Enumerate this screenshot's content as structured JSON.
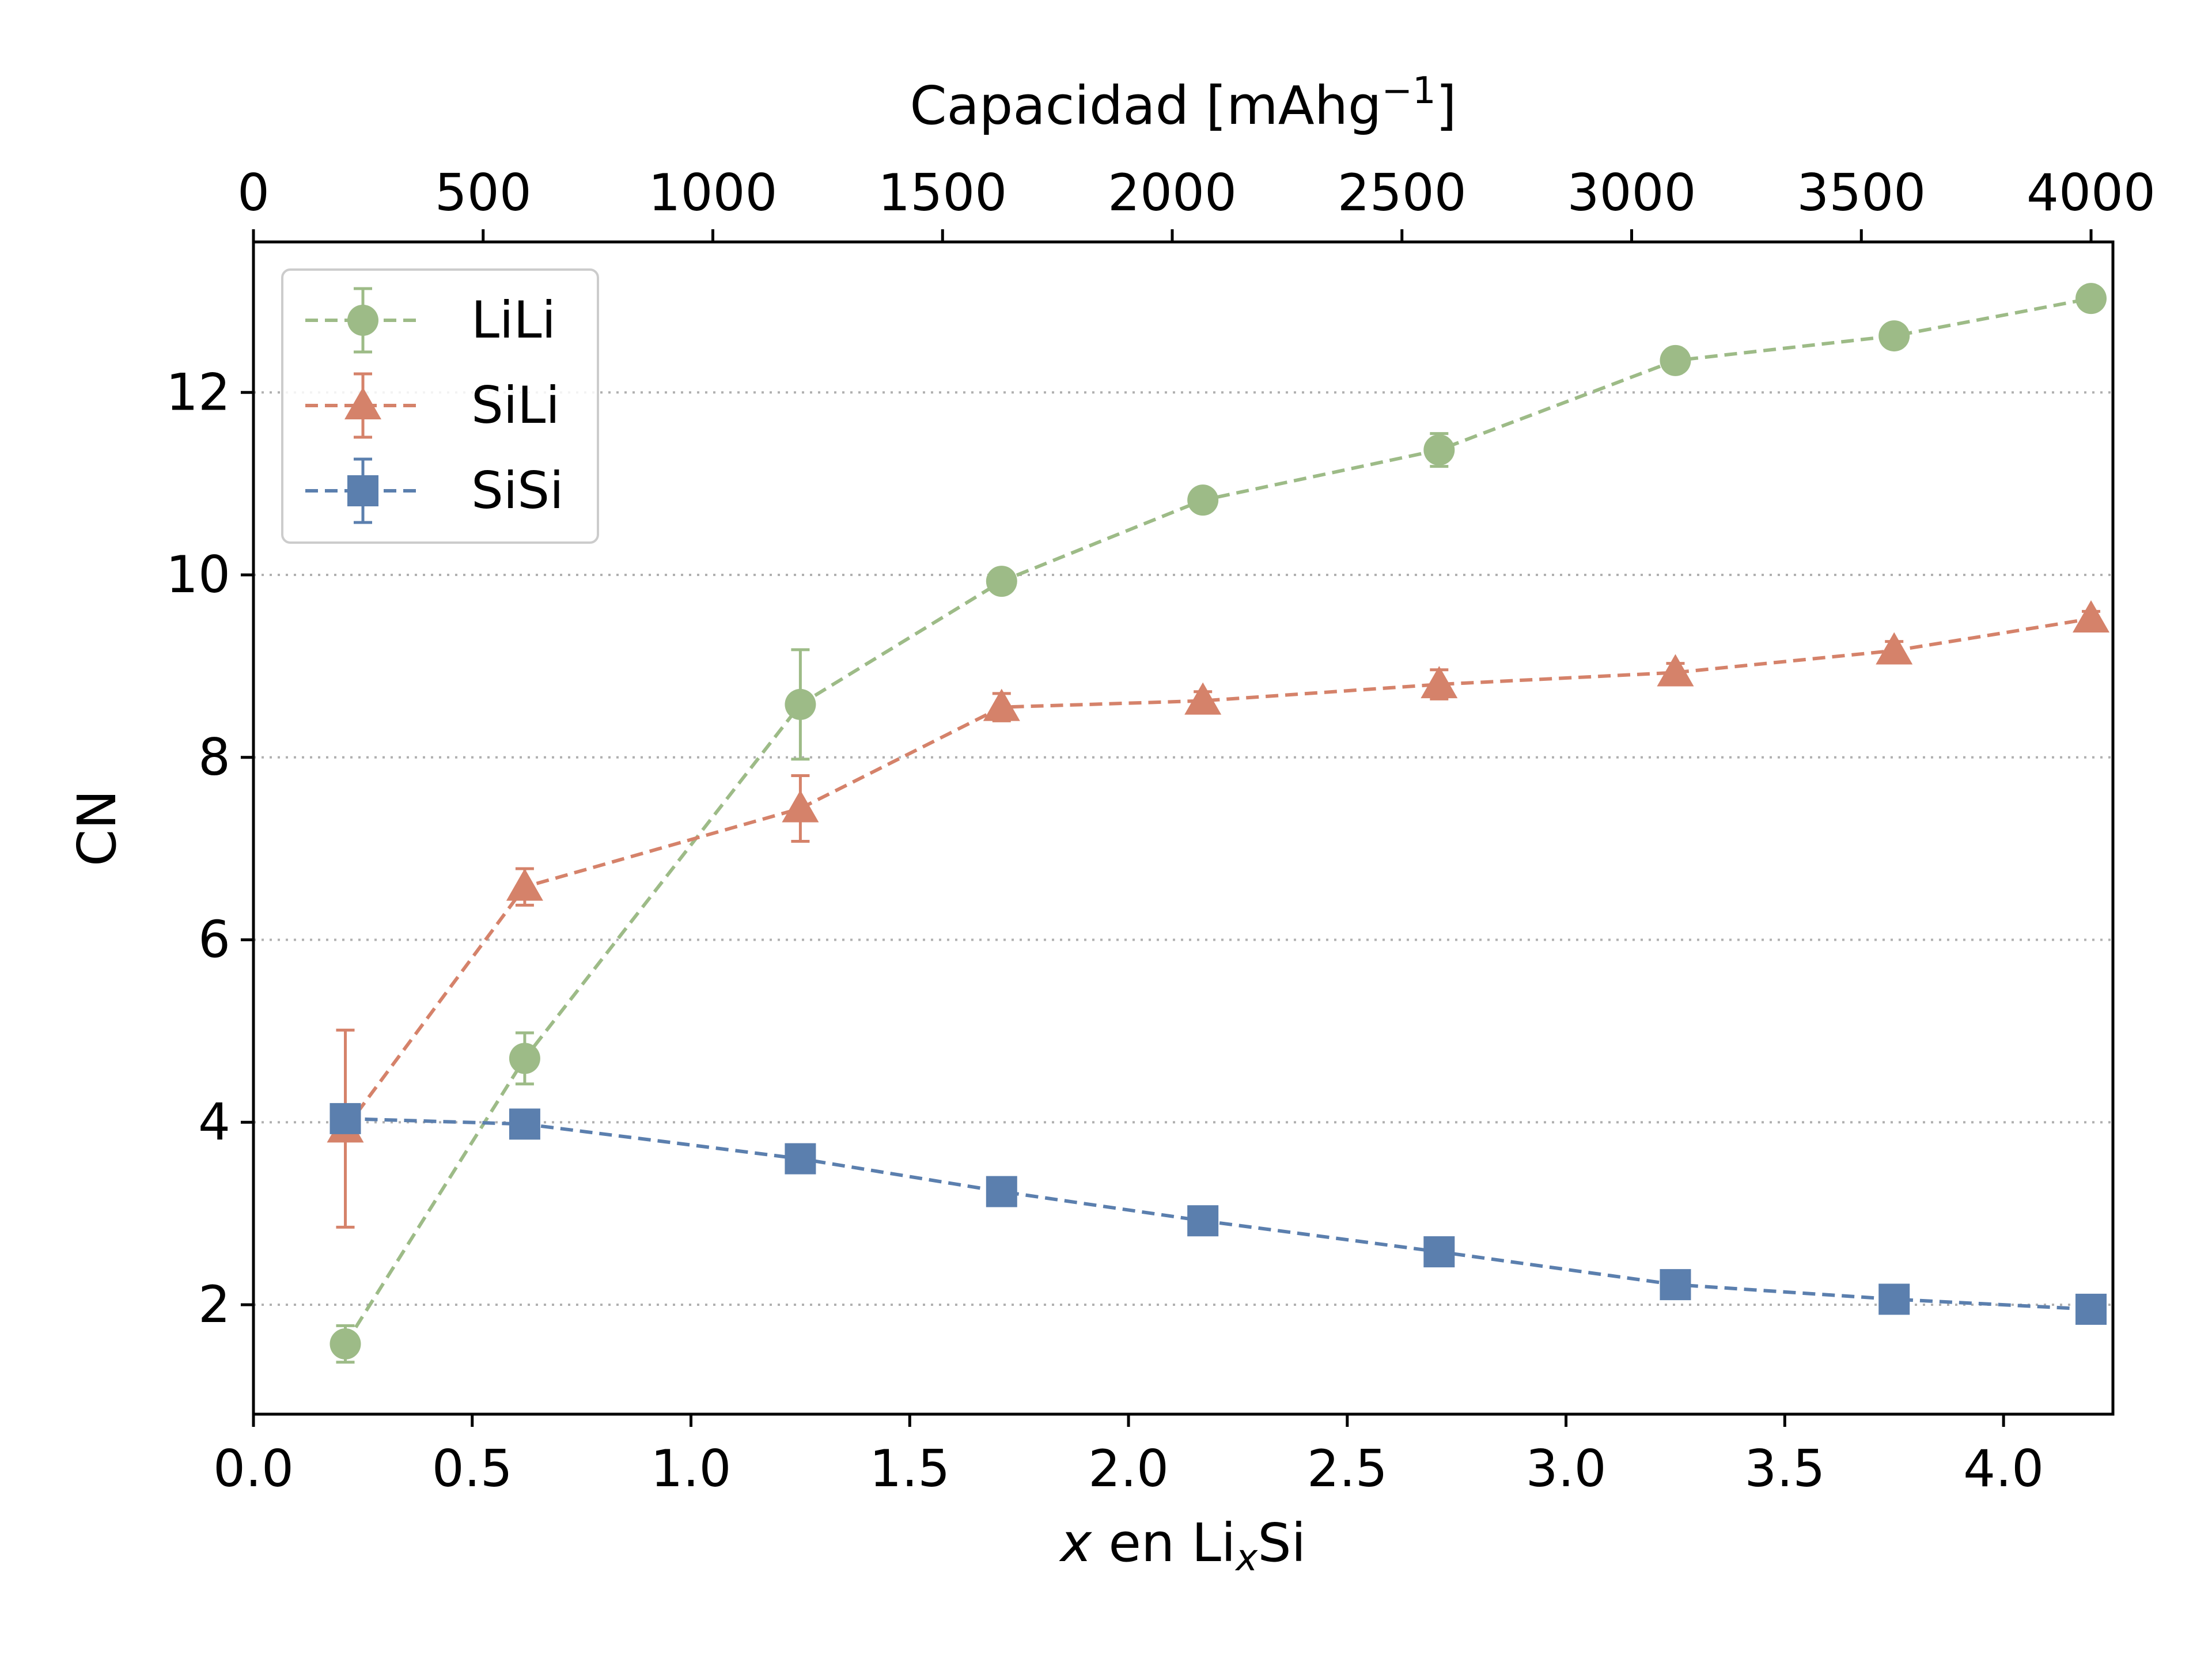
{
  "chart_data": {
    "type": "line",
    "xlabel_parts": {
      "var": "x",
      "mid": " en Li",
      "sub": "x",
      "end": "Si"
    },
    "ylabel": "CN",
    "top_xlabel_parts": {
      "main": "Capacidad [mAhg",
      "sup": "−1",
      "end": "]"
    },
    "xlim": [
      0.0,
      4.25
    ],
    "ylim": [
      0.8,
      13.65
    ],
    "top_xlim": [
      0,
      4000
    ],
    "top_xlim_at_x": 4.2,
    "x_ticks": [
      "0.0",
      "0.5",
      "1.0",
      "1.5",
      "2.0",
      "2.5",
      "3.0",
      "3.5",
      "4.0"
    ],
    "y_ticks": [
      "2",
      "4",
      "6",
      "8",
      "10",
      "12"
    ],
    "top_ticks": [
      "0",
      "500",
      "1000",
      "1500",
      "2000",
      "2500",
      "3000",
      "3500",
      "4000"
    ],
    "grid": {
      "y": true,
      "x": false,
      "style": "dotted"
    },
    "legend_position": "upper-left",
    "x": [
      0.21,
      0.62,
      1.25,
      1.71,
      2.17,
      2.71,
      3.25,
      3.75,
      4.2
    ],
    "series": [
      {
        "name": "LiLi",
        "color": "#9dbb87",
        "marker": "circle",
        "values": [
          1.57,
          4.7,
          8.58,
          9.93,
          10.82,
          11.37,
          12.35,
          12.62,
          13.03
        ],
        "errors": [
          0.2,
          0.28,
          0.6,
          0.12,
          0.08,
          0.18,
          0.1,
          0.08,
          0.08
        ]
      },
      {
        "name": "SiLi",
        "color": "#d5826a",
        "marker": "triangle",
        "values": [
          3.93,
          6.58,
          7.44,
          8.55,
          8.62,
          8.8,
          8.93,
          9.17,
          9.52
        ],
        "errors": [
          1.08,
          0.2,
          0.36,
          0.15,
          0.1,
          0.16,
          0.1,
          0.1,
          0.08
        ]
      },
      {
        "name": "SiSi",
        "color": "#5b7fae",
        "marker": "square",
        "values": [
          4.04,
          3.98,
          3.6,
          3.24,
          2.92,
          2.58,
          2.22,
          2.06,
          1.95
        ],
        "errors": [
          0.05,
          0.04,
          0.06,
          0.05,
          0.05,
          0.1,
          0.06,
          0.05,
          0.05
        ]
      }
    ]
  }
}
